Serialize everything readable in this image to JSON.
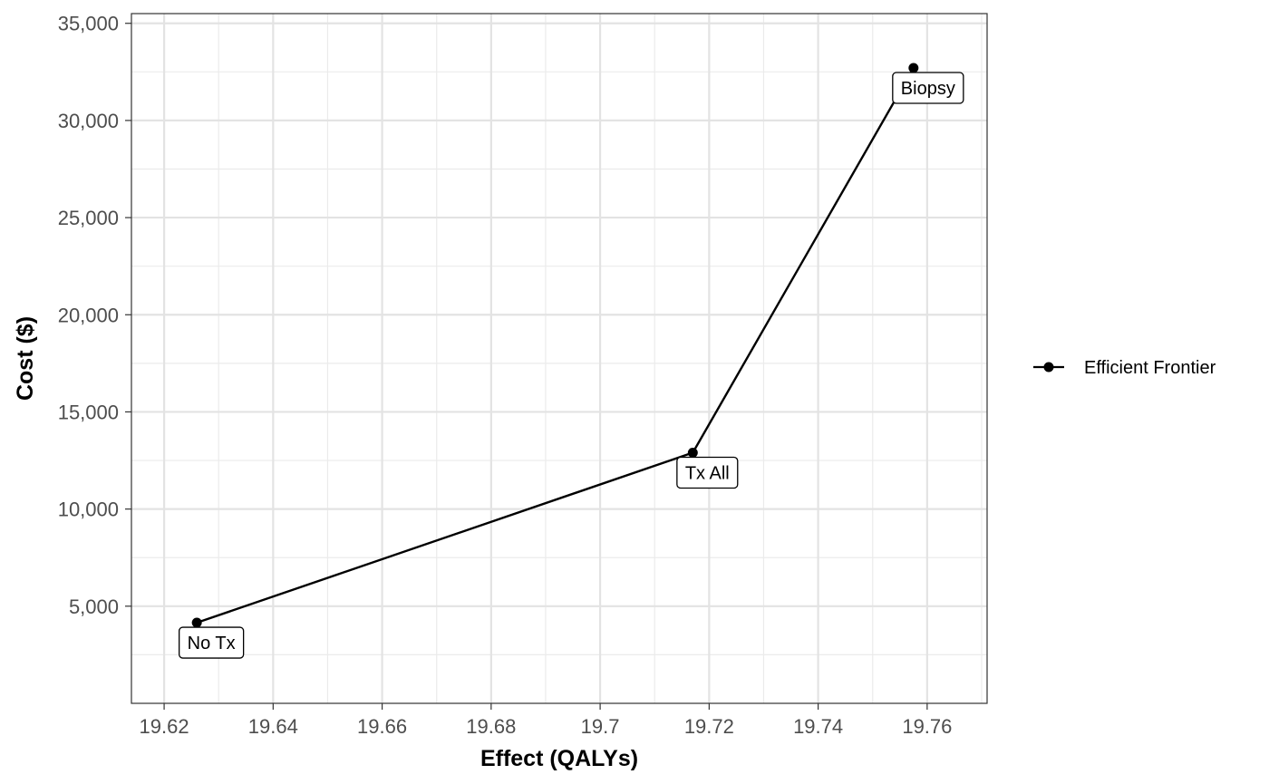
{
  "chart_data": {
    "type": "line",
    "xlabel": "Effect (QALYs)",
    "ylabel": "Cost ($)",
    "xlim": [
      19.614,
      19.771
    ],
    "ylim": [
      0,
      35500
    ],
    "x_ticks": [
      19.62,
      19.64,
      19.66,
      19.68,
      19.7,
      19.72,
      19.74,
      19.76
    ],
    "x_tick_labels": [
      "19.62",
      "19.64",
      "19.66",
      "19.68",
      "19.7",
      "19.72",
      "19.74",
      "19.76"
    ],
    "y_ticks": [
      5000,
      10000,
      15000,
      20000,
      25000,
      30000,
      35000
    ],
    "y_tick_labels": [
      "5,000",
      "10,000",
      "15,000",
      "20,000",
      "25,000",
      "30,000",
      "35,000"
    ],
    "grid": true,
    "legend_position": "right",
    "series": [
      {
        "name": "Efficient Frontier",
        "color": "#000000",
        "points": [
          {
            "x": 19.626,
            "y": 4150,
            "label": "No Tx"
          },
          {
            "x": 19.717,
            "y": 12900,
            "label": "Tx All"
          },
          {
            "x": 19.7575,
            "y": 32700,
            "label": "Biopsy"
          }
        ]
      }
    ]
  }
}
